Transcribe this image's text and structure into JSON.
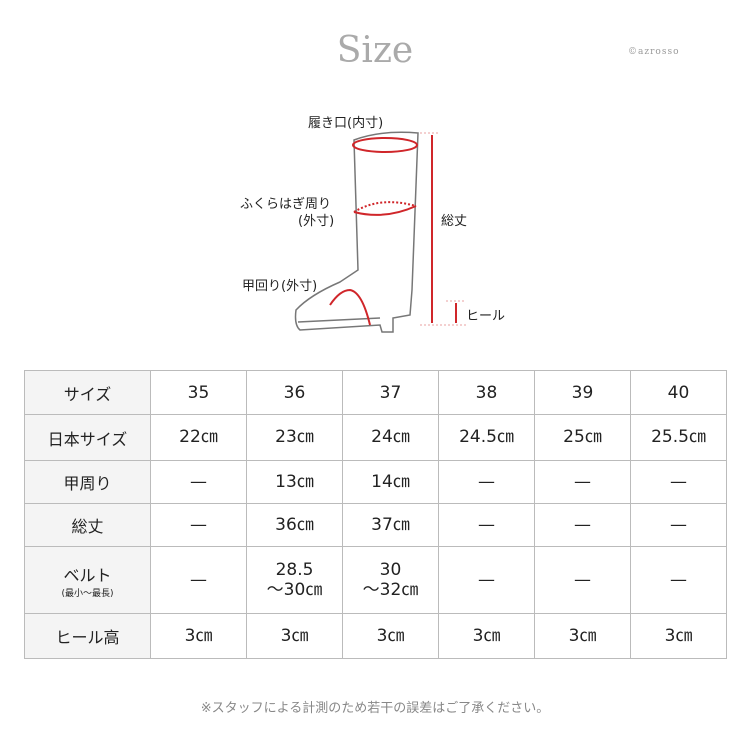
{
  "title": "Size",
  "watermark": "©azrosso",
  "diagram": {
    "opening": "履き口(内寸)",
    "calf": "ふくらはぎ周り",
    "calf_sub": "(外寸)",
    "instep": "甲回り(外寸)",
    "height": "総丈",
    "heel": "ヒール",
    "accent_color": "#d0262a"
  },
  "table": {
    "headers": [
      "サイズ",
      "35",
      "36",
      "37",
      "38",
      "39",
      "40"
    ],
    "rows": [
      {
        "label": "日本サイズ",
        "sub": "",
        "cells": [
          "22㎝",
          "23㎝",
          "24㎝",
          "24.5㎝",
          "25㎝",
          "25.5㎝"
        ]
      },
      {
        "label": "甲周り",
        "sub": "",
        "cells": [
          "—",
          "13㎝",
          "14㎝",
          "—",
          "—",
          "—"
        ]
      },
      {
        "label": "総丈",
        "sub": "",
        "cells": [
          "—",
          "36㎝",
          "37㎝",
          "—",
          "—",
          "—"
        ]
      },
      {
        "label": "ベルト",
        "sub": "(最小～最長)",
        "cells": [
          "—",
          "28.5\n～30㎝",
          "30\n～32㎝",
          "—",
          "—",
          "—"
        ]
      },
      {
        "label": "ヒール高",
        "sub": "",
        "cells": [
          "3㎝",
          "3㎝",
          "3㎝",
          "3㎝",
          "3㎝",
          "3㎝"
        ]
      }
    ]
  },
  "note": "※スタッフによる計測のため若干の誤差はご了承ください。"
}
